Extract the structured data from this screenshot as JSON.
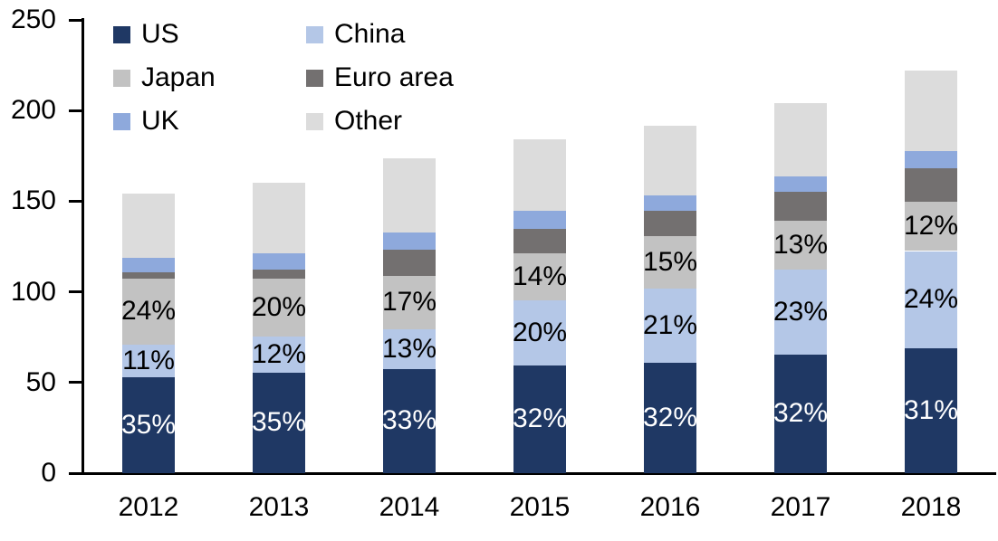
{
  "chart_data": {
    "type": "bar",
    "stacked": true,
    "title": "",
    "xlabel": "",
    "ylabel": "",
    "x": [
      "2012",
      "2013",
      "2014",
      "2015",
      "2016",
      "2017",
      "2018"
    ],
    "series": [
      {
        "name": "US",
        "color": "#1F3864",
        "values": [
          53,
          55.5,
          57.5,
          59.5,
          61,
          65.5,
          69
        ],
        "labels": [
          "35%",
          "35%",
          "33%",
          "32%",
          "32%",
          "32%",
          "31%"
        ],
        "label_color": "#FFFFFF"
      },
      {
        "name": "China",
        "color": "#B4C7E7",
        "values": [
          18,
          20,
          22,
          36,
          41,
          47,
          53.5
        ],
        "labels": [
          "11%",
          "12%",
          "13%",
          "20%",
          "21%",
          "23%",
          "24%"
        ],
        "label_color": "#000000"
      },
      {
        "name": "Japan",
        "color": "#C2C2C2",
        "values": [
          36.5,
          32,
          29.5,
          26,
          28.5,
          26.5,
          27
        ],
        "labels": [
          "24%",
          "20%",
          "17%",
          "14%",
          "15%",
          "13%",
          "12%"
        ],
        "label_color": "#000000"
      },
      {
        "name": "Euro area",
        "color": "#737070",
        "values": [
          3.5,
          5,
          14.5,
          13,
          14,
          16,
          18.5
        ],
        "labels": null,
        "label_color": null
      },
      {
        "name": "UK",
        "color": "#8EA9DC",
        "values": [
          8,
          9,
          9,
          10,
          8.5,
          8.5,
          9.5
        ],
        "labels": null,
        "label_color": null
      },
      {
        "name": "Other",
        "color": "#DCDCDC",
        "values": [
          35,
          38.5,
          41,
          39.5,
          38.5,
          40.5,
          44.5
        ],
        "labels": null,
        "label_color": null
      }
    ],
    "stack_order_bottom_to_top": [
      "US",
      "China",
      "Japan",
      "Euro area",
      "UK",
      "Other"
    ],
    "totals": [
      154,
      160,
      173.5,
      184,
      191.5,
      204,
      222.5
    ],
    "ylim": [
      0,
      250
    ],
    "yticks": [
      0,
      50,
      100,
      150,
      200,
      250
    ],
    "grid": false,
    "legend_position": "top-left",
    "legend_order": [
      "US",
      "China",
      "Japan",
      "Euro area",
      "UK",
      "Other"
    ],
    "axis_color": "#000000",
    "text_color": "#000000"
  }
}
